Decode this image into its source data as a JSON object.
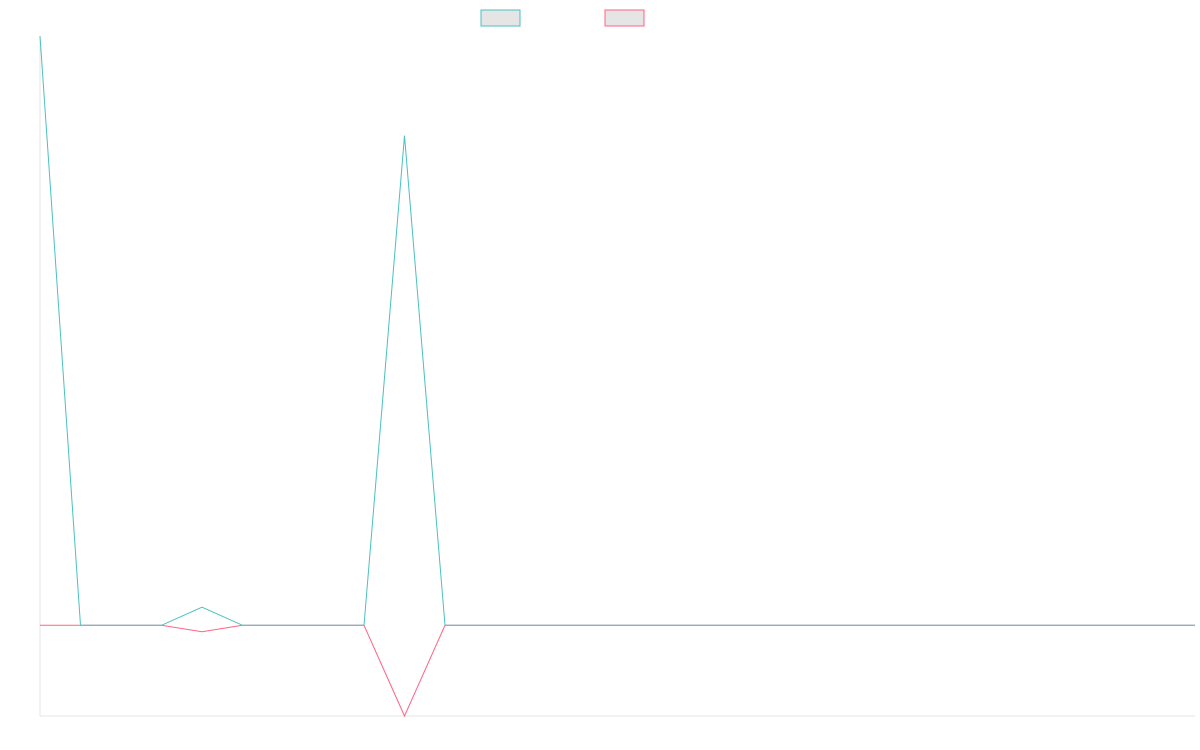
{
  "chart_data": {
    "type": "line",
    "title": "",
    "xlabel": "",
    "ylabel": "",
    "grid": false,
    "legend_position": "top-center",
    "x": [
      0,
      1,
      2,
      3,
      4,
      5,
      6,
      7,
      8,
      9,
      10,
      11,
      12,
      13,
      14,
      15,
      16,
      17,
      18,
      19,
      20,
      21,
      22,
      23,
      24,
      25,
      26,
      27,
      28,
      29
    ],
    "ylim": [
      -1,
      6.5
    ],
    "series": [
      {
        "color": "#4bc0c0",
        "values": [
          6.5,
          0,
          0,
          0,
          0.2,
          0,
          0,
          0,
          0,
          5.4,
          0,
          0,
          0,
          0,
          0,
          0,
          0,
          0,
          0,
          0,
          0,
          0,
          0,
          0,
          0,
          0,
          0,
          0,
          0,
          0
        ]
      },
      {
        "color": "#ff6384",
        "values": [
          0,
          0,
          0,
          0,
          -0.07,
          0,
          0,
          0,
          0,
          -1,
          0,
          0,
          0,
          0,
          0,
          0,
          0,
          0,
          0,
          0,
          0,
          0,
          0,
          0,
          0,
          0,
          0,
          0,
          0,
          0
        ]
      }
    ]
  }
}
